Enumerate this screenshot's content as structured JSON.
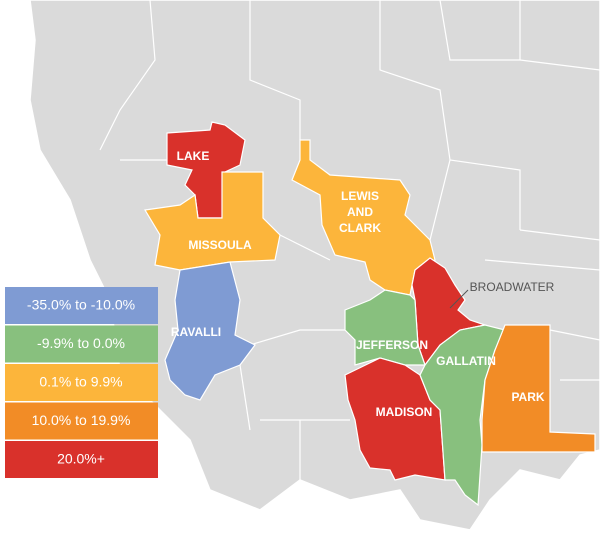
{
  "legend": [
    {
      "label": "-35.0% to -10.0%",
      "color": "#7f9bd3"
    },
    {
      "label": "-9.9% to 0.0%",
      "color": "#88c07e"
    },
    {
      "label": "0.1% to 9.9%",
      "color": "#fcb53b"
    },
    {
      "label": "10.0% to 19.9%",
      "color": "#f28c26"
    },
    {
      "label": "20.0%+",
      "color": "#d9312b"
    }
  ],
  "regions": [
    {
      "lines": [
        "LAKE"
      ],
      "color": "#d9312b"
    },
    {
      "lines": [
        "MISSOULA"
      ],
      "color": "#fcb53b"
    },
    {
      "lines": [
        "LEWIS",
        "AND",
        "CLARK"
      ],
      "color": "#fcb53b"
    },
    {
      "lines": [
        "RAVALLI"
      ],
      "color": "#7f9bd3"
    },
    {
      "lines": [
        "BROADWATER"
      ],
      "color": "#d9312b"
    },
    {
      "lines": [
        "JEFFERSON"
      ],
      "color": "#88c07e"
    },
    {
      "lines": [
        "MADISON"
      ],
      "color": "#d9312b"
    },
    {
      "lines": [
        "GALLATIN"
      ],
      "color": "#88c07e"
    },
    {
      "lines": [
        "PARK"
      ],
      "color": "#f28c26"
    }
  ]
}
